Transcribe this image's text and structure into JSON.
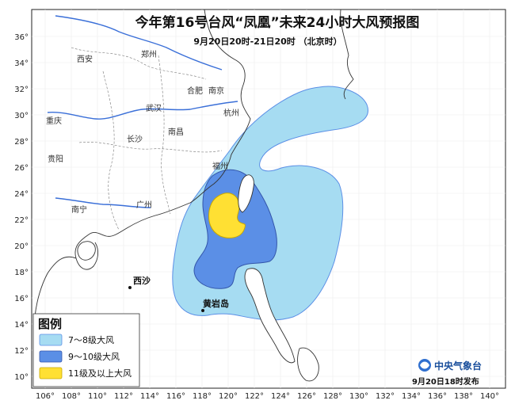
{
  "header": {
    "title": "今年第16号台风“凤凰”未来24小时大风预报图",
    "subtitle": "9月20日20时-21日20时 （北京时）"
  },
  "axes": {
    "x_ticks": [
      "106°",
      "108°",
      "110°",
      "112°",
      "114°",
      "116°",
      "118°",
      "120°",
      "122°",
      "124°",
      "126°",
      "128°",
      "130°",
      "132°",
      "134°",
      "136°",
      "138°",
      "140°"
    ],
    "y_ticks": [
      "36°",
      "34°",
      "32°",
      "30°",
      "28°",
      "26°",
      "24°",
      "22°",
      "20°",
      "18°",
      "16°",
      "14°",
      "12°",
      "10°"
    ]
  },
  "cities": [
    {
      "name": "西安"
    },
    {
      "name": "郑州"
    },
    {
      "name": "合肥"
    },
    {
      "name": "南京"
    },
    {
      "name": "武汉"
    },
    {
      "name": "杭州"
    },
    {
      "name": "重庆"
    },
    {
      "name": "长沙"
    },
    {
      "name": "南昌"
    },
    {
      "name": "贵阳"
    },
    {
      "name": "福州"
    },
    {
      "name": "南宁"
    },
    {
      "name": "广州"
    }
  ],
  "places": {
    "xisha": "西沙",
    "huangyan": "黄岩岛"
  },
  "legend": {
    "title": "图例",
    "items": [
      {
        "label": "7～8级大风",
        "color": "#a6dcf2"
      },
      {
        "label": "9～10级大风",
        "color": "#5b8fe6"
      },
      {
        "label": "11级及以上大风",
        "color": "#ffe033"
      }
    ]
  },
  "footer": {
    "agency": "中央气象台",
    "issued": "9月20日18时发布"
  },
  "colors": {
    "sea": "#ffffff",
    "land": "#ffffff",
    "coast": "#333333",
    "river": "#3a6fd8",
    "grid": "#e6e6e6"
  }
}
